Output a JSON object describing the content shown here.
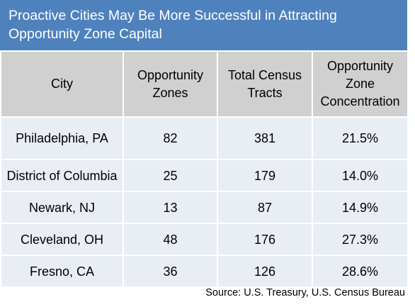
{
  "title": {
    "line1": "Proactive Cities May Be More Successful in Attracting",
    "line2": "Opportunity Zone Capital"
  },
  "colors": {
    "title_background": "#4f81bd",
    "header_background": "#d0d0d0",
    "row_background": "#e9edf4"
  },
  "table": {
    "headers": [
      {
        "line1": "City",
        "line2": "",
        "line3": ""
      },
      {
        "line1": "Opportunity",
        "line2": "Zones",
        "line3": ""
      },
      {
        "line1": "Total Census",
        "line2": "Tracts",
        "line3": ""
      },
      {
        "line1": "Opportunity",
        "line2": "Zone",
        "line3": "Concentration"
      }
    ],
    "rows": [
      {
        "city": "Philadelphia, PA",
        "zones": "82",
        "tracts": "381",
        "concentration": "21.5%"
      },
      {
        "city": "District of Columbia",
        "zones": "25",
        "tracts": "179",
        "concentration": "14.0%"
      },
      {
        "city": "Newark, NJ",
        "zones": "13",
        "tracts": "87",
        "concentration": "14.9%"
      },
      {
        "city": "Cleveland, OH",
        "zones": "48",
        "tracts": "176",
        "concentration": "27.3%"
      },
      {
        "city": "Fresno, CA",
        "zones": "36",
        "tracts": "126",
        "concentration": "28.6%"
      }
    ]
  },
  "source": "Source: U.S. Treasury, U.S. Census Bureau"
}
